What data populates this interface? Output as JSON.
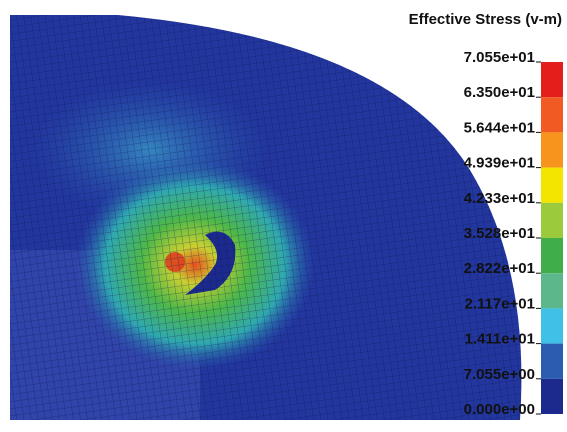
{
  "legend": {
    "title": "Effective Stress (v-m)",
    "levels": [
      "7.055e+01",
      "6.350e+01",
      "5.644e+01",
      "4.939e+01",
      "4.233e+01",
      "3.528e+01",
      "2.822e+01",
      "2.117e+01",
      "1.411e+01",
      "7.055e+00",
      "0.000e+00"
    ],
    "colors": [
      "#e41f1b",
      "#f15a22",
      "#f7941d",
      "#f3e500",
      "#9bcb3c",
      "#3fae49",
      "#5cb88a",
      "#3fc1e6",
      "#2a5db0",
      "#1b2a8c"
    ]
  }
}
